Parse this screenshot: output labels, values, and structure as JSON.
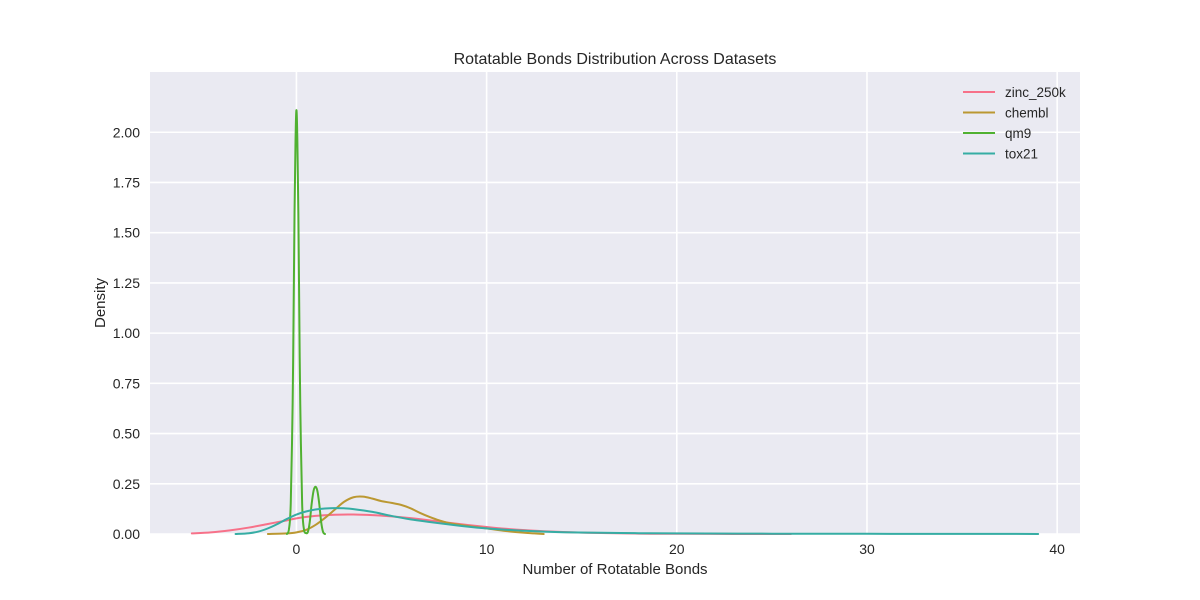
{
  "chart_data": {
    "type": "line",
    "title": "Rotatable Bonds Distribution Across Datasets",
    "xlabel": "Number of Rotatable Bonds",
    "ylabel": "Density",
    "xlim": [
      -7.7,
      41.2
    ],
    "ylim": [
      0,
      2.3
    ],
    "xticks": [
      0,
      10,
      20,
      30,
      40
    ],
    "xtick_labels": [
      "0",
      "10",
      "20",
      "30",
      "40"
    ],
    "yticks": [
      0,
      0.25,
      0.5,
      0.75,
      1.0,
      1.25,
      1.5,
      1.75,
      2.0
    ],
    "ytick_labels": [
      "0.00",
      "0.25",
      "0.50",
      "0.75",
      "1.00",
      "1.25",
      "1.50",
      "1.75",
      "2.00"
    ],
    "grid": true,
    "legend_position": "top-right",
    "series": [
      {
        "name": "zinc_250k",
        "color": "#f77189",
        "points": [
          [
            -5.5,
            0.003
          ],
          [
            -4.5,
            0.008
          ],
          [
            -3.5,
            0.018
          ],
          [
            -2.5,
            0.032
          ],
          [
            -1.5,
            0.05
          ],
          [
            -0.5,
            0.068
          ],
          [
            0,
            0.078
          ],
          [
            1,
            0.09
          ],
          [
            2,
            0.096
          ],
          [
            3,
            0.097
          ],
          [
            4,
            0.094
          ],
          [
            5,
            0.088
          ],
          [
            6,
            0.079
          ],
          [
            7,
            0.068
          ],
          [
            8,
            0.056
          ],
          [
            9,
            0.045
          ],
          [
            10,
            0.035
          ],
          [
            11,
            0.026
          ],
          [
            12,
            0.019
          ],
          [
            13,
            0.014
          ],
          [
            14,
            0.01
          ],
          [
            15,
            0.007
          ],
          [
            16,
            0.005
          ],
          [
            18,
            0.002
          ],
          [
            20,
            0.001
          ],
          [
            23,
            0.0003
          ],
          [
            26,
            0.0001
          ]
        ]
      },
      {
        "name": "chembl",
        "color": "#bb9832",
        "points": [
          [
            -1.5,
            0.0
          ],
          [
            -0.5,
            0.003
          ],
          [
            0,
            0.008
          ],
          [
            0.5,
            0.02
          ],
          [
            1,
            0.045
          ],
          [
            1.5,
            0.08
          ],
          [
            2,
            0.12
          ],
          [
            2.5,
            0.16
          ],
          [
            3,
            0.183
          ],
          [
            3.5,
            0.186
          ],
          [
            4,
            0.176
          ],
          [
            4.5,
            0.163
          ],
          [
            5,
            0.155
          ],
          [
            5.5,
            0.145
          ],
          [
            6,
            0.128
          ],
          [
            6.5,
            0.105
          ],
          [
            7,
            0.085
          ],
          [
            7.5,
            0.068
          ],
          [
            8,
            0.055
          ],
          [
            9,
            0.04
          ],
          [
            10,
            0.028
          ],
          [
            11,
            0.015
          ],
          [
            12,
            0.006
          ],
          [
            12.5,
            0.003
          ],
          [
            13,
            0.0
          ]
        ]
      },
      {
        "name": "qm9",
        "color": "#50b131",
        "points": [
          [
            -0.5,
            0.0
          ],
          [
            -0.4,
            0.02
          ],
          [
            -0.3,
            0.15
          ],
          [
            -0.2,
            0.65
          ],
          [
            -0.15,
            1.1
          ],
          [
            -0.1,
            1.6
          ],
          [
            -0.05,
            1.95
          ],
          [
            0,
            2.11
          ],
          [
            0.05,
            1.95
          ],
          [
            0.1,
            1.6
          ],
          [
            0.15,
            1.1
          ],
          [
            0.2,
            0.65
          ],
          [
            0.3,
            0.15
          ],
          [
            0.4,
            0.02
          ],
          [
            0.5,
            0.005
          ],
          [
            0.6,
            0.01
          ],
          [
            0.7,
            0.06
          ],
          [
            0.8,
            0.15
          ],
          [
            0.9,
            0.215
          ],
          [
            1.0,
            0.235
          ],
          [
            1.1,
            0.215
          ],
          [
            1.2,
            0.15
          ],
          [
            1.3,
            0.06
          ],
          [
            1.4,
            0.01
          ],
          [
            1.5,
            0.0
          ]
        ]
      },
      {
        "name": "tox21",
        "color": "#36ada4",
        "points": [
          [
            -3.2,
            0.0
          ],
          [
            -2.5,
            0.004
          ],
          [
            -2,
            0.012
          ],
          [
            -1.5,
            0.028
          ],
          [
            -1,
            0.05
          ],
          [
            -0.5,
            0.075
          ],
          [
            0,
            0.097
          ],
          [
            0.5,
            0.112
          ],
          [
            1,
            0.122
          ],
          [
            1.5,
            0.127
          ],
          [
            2,
            0.129
          ],
          [
            2.5,
            0.128
          ],
          [
            3,
            0.124
          ],
          [
            4,
            0.11
          ],
          [
            5,
            0.09
          ],
          [
            6,
            0.073
          ],
          [
            7,
            0.06
          ],
          [
            8,
            0.048
          ],
          [
            9,
            0.037
          ],
          [
            10,
            0.028
          ],
          [
            11,
            0.021
          ],
          [
            12,
            0.016
          ],
          [
            13,
            0.012
          ],
          [
            14,
            0.009
          ],
          [
            16,
            0.006
          ],
          [
            18,
            0.004
          ],
          [
            20,
            0.003
          ],
          [
            25,
            0.0015
          ],
          [
            30,
            0.001
          ],
          [
            35,
            0.0006
          ],
          [
            39,
            0.0003
          ]
        ]
      }
    ]
  }
}
